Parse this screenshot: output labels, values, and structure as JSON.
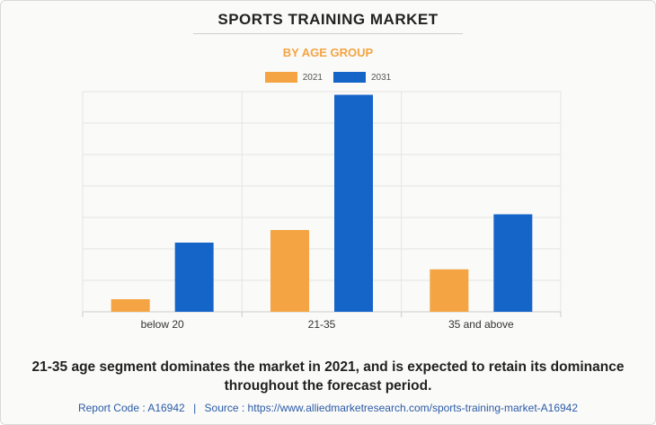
{
  "header": {
    "title": "SPORTS TRAINING MARKET",
    "subtitle": "BY AGE GROUP"
  },
  "colors": {
    "series_2021": "#F4A442",
    "series_2031": "#1565C9",
    "subtitle": "#F4A442",
    "footer": "#2B5BA8"
  },
  "chart_data": {
    "type": "bar",
    "categories": [
      "below 20",
      "21-35",
      "35 and above"
    ],
    "series": [
      {
        "name": "2021",
        "values": [
          0.4,
          2.6,
          1.35
        ]
      },
      {
        "name": "2031",
        "values": [
          2.2,
          6.9,
          3.1
        ]
      }
    ],
    "ylim": [
      0,
      7
    ],
    "grid": true,
    "legend": "top-center"
  },
  "caption": {
    "line1": "21-35 age segment dominates the market in 2021, and is expected to retain its dominance",
    "line2": "throughout the forecast period."
  },
  "footer": {
    "report_code": "Report Code : A16942",
    "separator": "|",
    "source": "Source : https://www.alliedmarketresearch.com/sports-training-market-A16942"
  }
}
